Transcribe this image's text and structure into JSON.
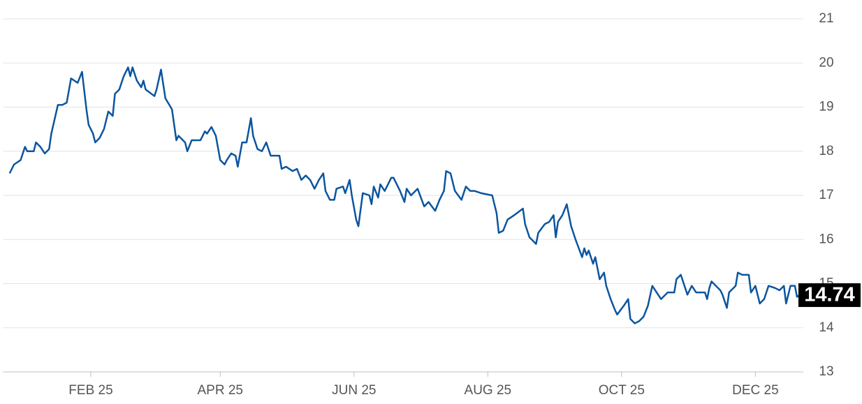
{
  "chart_data": {
    "type": "line",
    "x": [
      -6,
      -4,
      -1,
      1,
      2,
      5,
      6,
      8,
      10,
      12,
      13,
      16,
      18,
      20,
      22,
      25,
      27,
      29,
      30,
      32,
      33,
      35,
      37,
      39,
      41,
      42,
      44,
      46,
      48,
      49,
      50,
      52,
      54,
      55,
      56,
      60,
      61,
      63,
      65,
      68,
      70,
      71,
      74,
      75,
      77,
      81,
      83,
      84,
      86,
      88,
      90,
      92,
      93,
      95,
      97,
      98,
      100,
      102,
      104,
      105,
      107,
      109,
      111,
      113,
      117,
      118,
      120,
      123,
      125,
      127,
      129,
      131,
      133,
      135,
      137,
      138,
      140,
      142,
      143,
      146,
      147,
      149,
      150,
      152,
      153,
      155,
      158,
      159,
      160,
      162,
      163,
      165,
      168,
      169,
      172,
      174,
      175,
      177,
      180,
      183,
      185,
      188,
      190,
      192,
      193,
      195,
      197,
      200,
      202,
      204,
      206,
      209,
      214,
      216,
      217,
      219,
      221,
      224,
      228,
      229,
      231,
      234,
      235,
      238,
      240,
      242,
      243,
      244,
      246,
      248,
      250,
      252,
      255,
      256,
      257,
      258,
      260,
      261,
      263,
      265,
      266,
      268,
      270,
      271,
      274,
      276,
      277,
      279,
      281,
      283,
      285,
      287,
      289,
      291,
      294,
      297,
      298,
      300,
      303,
      305,
      307,
      311,
      312,
      313,
      314,
      318,
      319,
      321,
      322,
      325,
      326,
      328,
      331,
      332,
      334,
      336,
      338,
      340,
      343,
      345,
      347,
      348,
      350,
      352,
      353,
      354
    ],
    "series": [
      {
        "color": "#0b559f",
        "values": [
          17.5,
          17.7,
          17.8,
          18.1,
          18.0,
          18.0,
          18.2,
          18.1,
          17.95,
          18.05,
          18.4,
          19.05,
          19.05,
          19.1,
          19.65,
          19.55,
          19.8,
          18.95,
          18.6,
          18.4,
          18.2,
          18.3,
          18.5,
          18.9,
          18.8,
          19.3,
          19.4,
          19.7,
          19.9,
          19.7,
          19.9,
          19.6,
          19.45,
          19.6,
          19.4,
          19.25,
          19.4,
          19.85,
          19.2,
          18.95,
          18.25,
          18.35,
          18.2,
          18.0,
          18.25,
          18.25,
          18.45,
          18.4,
          18.55,
          18.35,
          17.8,
          17.7,
          17.8,
          17.95,
          17.9,
          17.65,
          18.2,
          18.2,
          18.75,
          18.35,
          18.05,
          18.0,
          18.2,
          17.9,
          17.9,
          17.6,
          17.65,
          17.55,
          17.6,
          17.35,
          17.45,
          17.35,
          17.15,
          17.35,
          17.5,
          17.1,
          16.9,
          16.9,
          17.15,
          17.2,
          17.05,
          17.35,
          17.0,
          16.45,
          16.3,
          17.05,
          17.0,
          16.8,
          17.2,
          16.95,
          17.25,
          17.1,
          17.4,
          17.4,
          17.1,
          16.85,
          17.15,
          17.0,
          17.15,
          16.75,
          16.85,
          16.65,
          16.9,
          17.1,
          17.55,
          17.5,
          17.1,
          16.9,
          17.2,
          17.1,
          17.1,
          17.05,
          17.0,
          16.6,
          16.15,
          16.2,
          16.45,
          16.55,
          16.7,
          16.35,
          16.05,
          15.9,
          16.15,
          16.35,
          16.4,
          16.55,
          16.05,
          16.4,
          16.55,
          16.8,
          16.3,
          16.0,
          15.6,
          15.8,
          15.65,
          15.75,
          15.45,
          15.6,
          15.1,
          15.25,
          14.95,
          14.65,
          14.4,
          14.3,
          14.5,
          14.65,
          14.2,
          14.1,
          14.15,
          14.25,
          14.5,
          14.95,
          14.8,
          14.65,
          14.8,
          14.8,
          15.1,
          15.2,
          14.75,
          14.95,
          14.8,
          14.8,
          14.65,
          14.9,
          15.05,
          14.85,
          14.75,
          14.45,
          14.8,
          14.95,
          15.25,
          15.2,
          15.2,
          14.8,
          14.95,
          14.55,
          14.65,
          14.95,
          14.9,
          14.85,
          14.95,
          14.55,
          14.95,
          14.95,
          14.7,
          14.74
        ]
      }
    ],
    "xlim": [
      -9,
      357
    ],
    "xticks": [
      {
        "value": 31,
        "label": "FEB 25"
      },
      {
        "value": 90,
        "label": "APR 25"
      },
      {
        "value": 151,
        "label": "JUN 25"
      },
      {
        "value": 212,
        "label": "AUG 25"
      },
      {
        "value": 273,
        "label": "OCT 25"
      },
      {
        "value": 334,
        "label": "DEC 25"
      }
    ],
    "ylim": [
      13,
      21
    ],
    "yticks": [
      13,
      14,
      15,
      16,
      17,
      18,
      19,
      20,
      21
    ],
    "grid": true
  }
}
